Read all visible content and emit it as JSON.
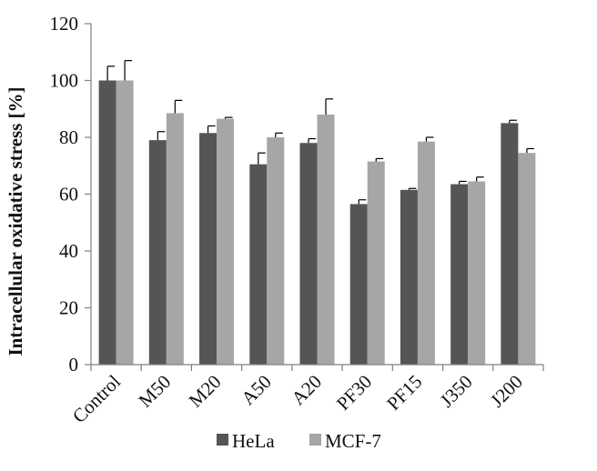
{
  "chart_data": {
    "type": "bar",
    "title": "",
    "xlabel": "",
    "ylabel": "Intracellular oxidative stress [%]",
    "ylim": [
      0,
      120
    ],
    "yticks": [
      0,
      20,
      40,
      60,
      80,
      100,
      120
    ],
    "grid": false,
    "legend_position": "bottom",
    "categories": [
      "Control",
      "M50",
      "M20",
      "A50",
      "A20",
      "PF30",
      "PF15",
      "J350",
      "J200"
    ],
    "series": [
      {
        "name": "HeLa",
        "color": "#555555",
        "values": [
          100,
          79,
          81.5,
          70.5,
          78,
          56.5,
          61.5,
          63.5,
          85
        ],
        "errors": [
          5,
          3,
          2.5,
          4,
          1.5,
          1.5,
          0.5,
          1,
          1
        ]
      },
      {
        "name": "MCF-7",
        "color": "#a6a6a6",
        "values": [
          100,
          88.5,
          86.5,
          80,
          88,
          71.5,
          78.5,
          64.5,
          74.5
        ],
        "errors": [
          7,
          4.5,
          0.5,
          1.5,
          5.5,
          1,
          1.5,
          1.5,
          1.5
        ]
      }
    ]
  }
}
